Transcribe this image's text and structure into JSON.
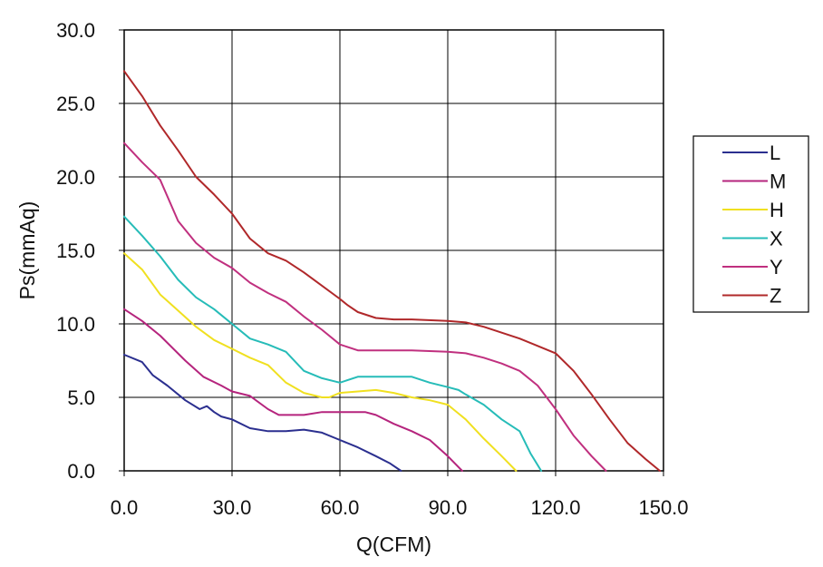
{
  "chart_data": {
    "type": "line",
    "title": "",
    "xlabel": "Q(CFM)",
    "ylabel": "Ps(mmAq)",
    "xlim": [
      0,
      150
    ],
    "ylim": [
      0,
      30
    ],
    "xticks": [
      "0.0",
      "30.0",
      "60.0",
      "90.0",
      "120.0",
      "150.0"
    ],
    "yticks": [
      "0.0",
      "5.0",
      "10.0",
      "15.0",
      "20.0",
      "25.0",
      "30.0"
    ],
    "grid": true,
    "legend_position": "right",
    "series": [
      {
        "name": "L",
        "color": "#2b2f8f",
        "x": [
          0,
          5,
          8,
          12,
          17,
          21,
          23,
          25,
          27,
          30,
          35,
          40,
          45,
          50,
          55,
          60,
          65,
          70,
          74,
          77
        ],
        "y": [
          7.9,
          7.4,
          6.5,
          5.8,
          4.8,
          4.2,
          4.4,
          4.0,
          3.7,
          3.5,
          2.9,
          2.7,
          2.7,
          2.8,
          2.6,
          2.1,
          1.6,
          1.0,
          0.5,
          0.0
        ]
      },
      {
        "name": "M",
        "color": "#b5247d",
        "x": [
          0,
          5,
          10,
          17,
          22,
          27,
          30,
          35,
          40,
          43,
          50,
          55,
          60,
          67,
          70,
          75,
          80,
          85,
          90,
          94
        ],
        "y": [
          11.0,
          10.2,
          9.2,
          7.5,
          6.4,
          5.8,
          5.4,
          5.1,
          4.2,
          3.8,
          3.8,
          4.0,
          4.0,
          4.0,
          3.8,
          3.2,
          2.7,
          2.1,
          1.0,
          0.0
        ]
      },
      {
        "name": "H",
        "color": "#f0e020",
        "x": [
          0,
          5,
          10,
          15,
          20,
          25,
          30,
          35,
          40,
          45,
          50,
          55,
          57,
          60,
          65,
          70,
          75,
          80,
          85,
          90,
          95,
          100,
          105,
          109
        ],
        "y": [
          14.8,
          13.7,
          12.0,
          10.9,
          9.8,
          8.9,
          8.3,
          7.7,
          7.2,
          6.0,
          5.3,
          5.0,
          5.0,
          5.3,
          5.4,
          5.5,
          5.3,
          5.0,
          4.8,
          4.5,
          3.5,
          2.2,
          1.0,
          0.0
        ]
      },
      {
        "name": "X",
        "color": "#26bcb8",
        "x": [
          0,
          5,
          10,
          15,
          20,
          25,
          30,
          35,
          40,
          45,
          50,
          55,
          60,
          65,
          70,
          75,
          80,
          85,
          90,
          93,
          95,
          100,
          105,
          110,
          113,
          116
        ],
        "y": [
          17.3,
          16.0,
          14.6,
          13.0,
          11.8,
          11.0,
          10.0,
          9.0,
          8.6,
          8.1,
          6.8,
          6.3,
          6.0,
          6.4,
          6.4,
          6.4,
          6.4,
          6.0,
          5.7,
          5.5,
          5.2,
          4.5,
          3.5,
          2.7,
          1.2,
          0.0
        ]
      },
      {
        "name": "Y",
        "color": "#c0307f",
        "x": [
          0,
          5,
          10,
          15,
          20,
          25,
          30,
          35,
          40,
          45,
          50,
          55,
          60,
          65,
          70,
          80,
          90,
          95,
          100,
          105,
          110,
          115,
          120,
          125,
          130,
          134
        ],
        "y": [
          22.3,
          21.0,
          19.8,
          17.0,
          15.5,
          14.5,
          13.8,
          12.8,
          12.1,
          11.5,
          10.5,
          9.6,
          8.6,
          8.2,
          8.2,
          8.2,
          8.1,
          8.0,
          7.7,
          7.3,
          6.8,
          5.8,
          4.2,
          2.4,
          1.0,
          0.0
        ]
      },
      {
        "name": "Z",
        "color": "#b0282a",
        "x": [
          0,
          5,
          10,
          15,
          20,
          25,
          30,
          35,
          40,
          45,
          50,
          55,
          60,
          62,
          65,
          70,
          75,
          80,
          90,
          95,
          100,
          105,
          110,
          115,
          120,
          125,
          130,
          135,
          140,
          145,
          149
        ],
        "y": [
          27.2,
          25.5,
          23.5,
          21.8,
          20.0,
          18.8,
          17.5,
          15.8,
          14.8,
          14.3,
          13.5,
          12.6,
          11.7,
          11.3,
          10.8,
          10.4,
          10.3,
          10.3,
          10.2,
          10.1,
          9.8,
          9.4,
          9.0,
          8.5,
          8.0,
          6.8,
          5.2,
          3.5,
          1.9,
          0.8,
          0.0
        ]
      }
    ]
  }
}
